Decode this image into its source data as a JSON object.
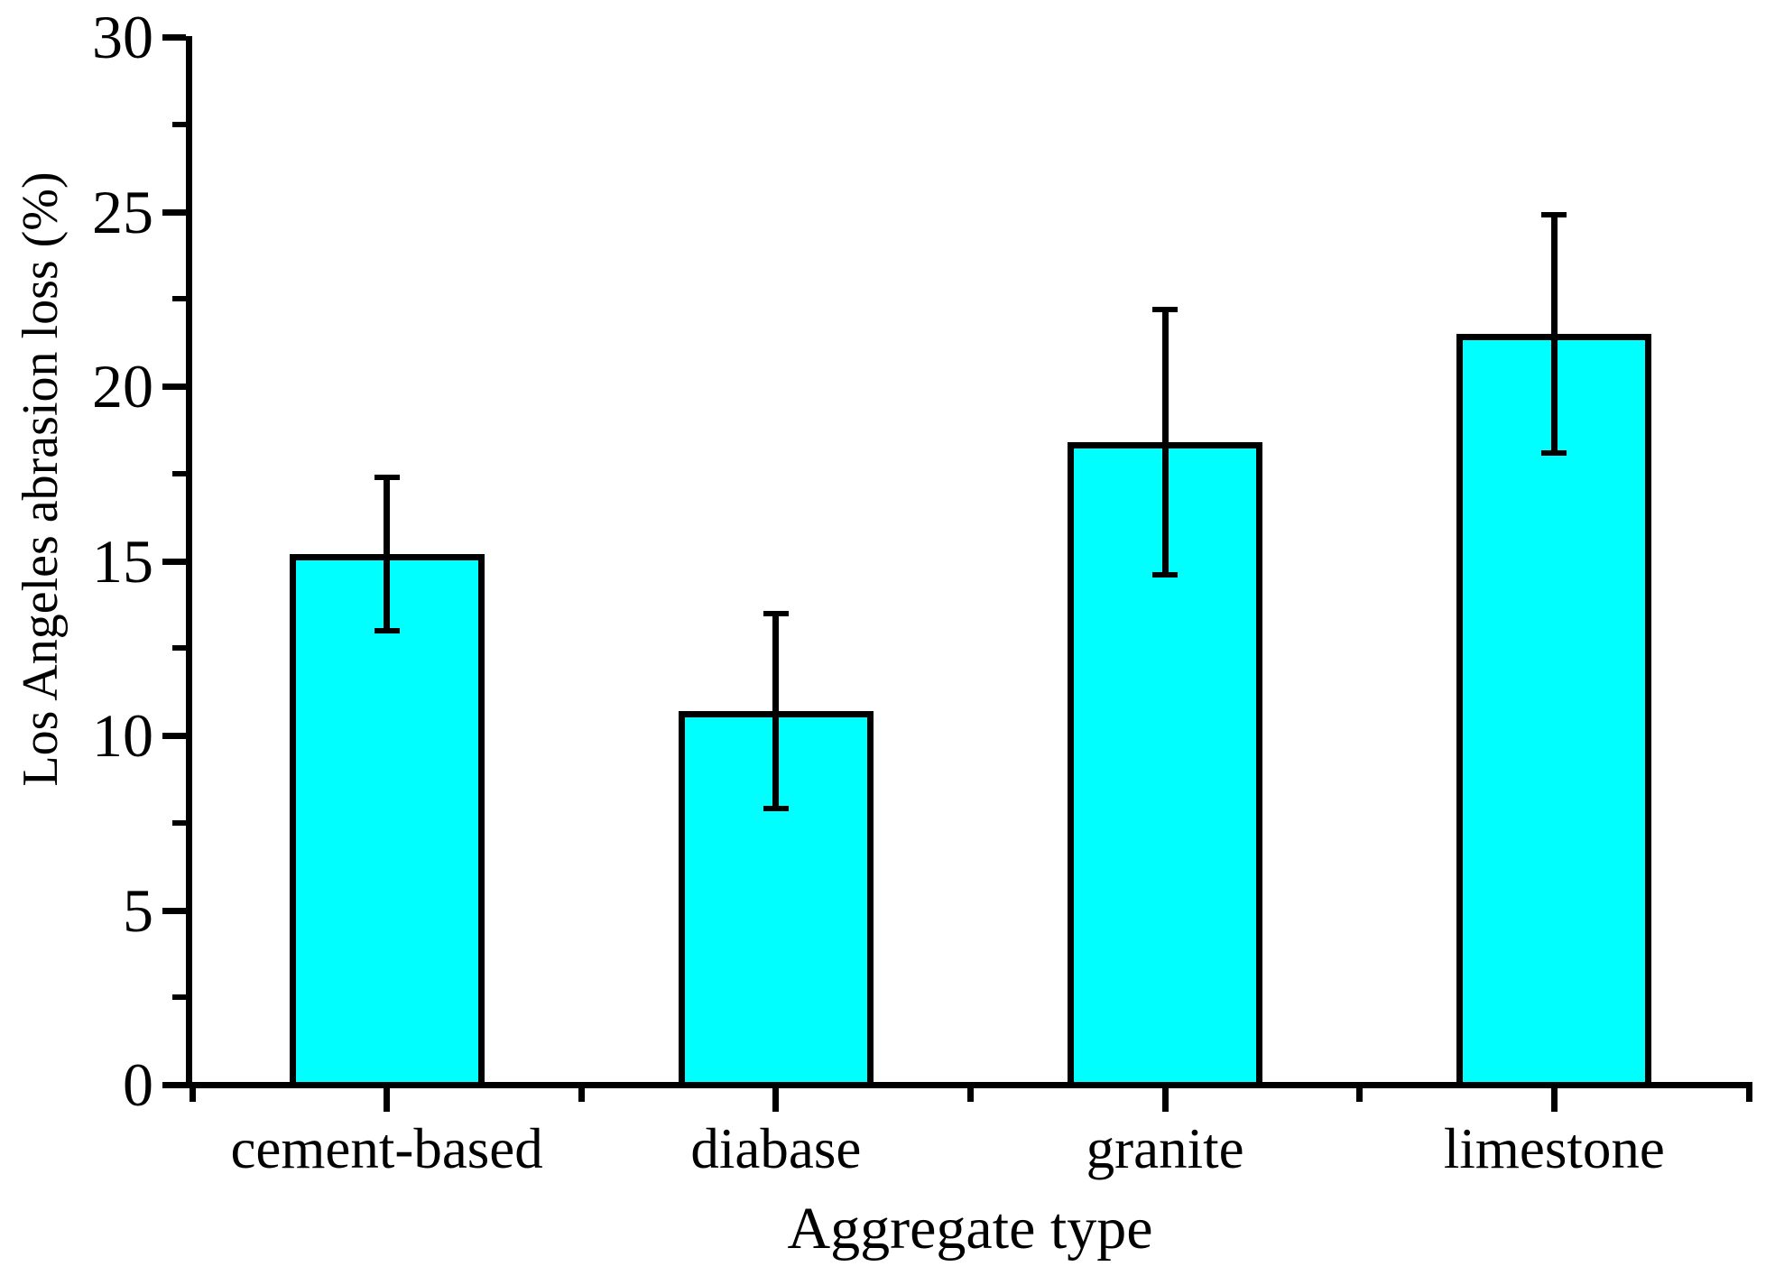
{
  "chart_data": {
    "type": "bar",
    "title": "",
    "xlabel": "Aggregate type",
    "ylabel": "Los Angeles abrasion loss (%)",
    "categories": [
      "cement-based",
      "diabase",
      "granite",
      "limestone"
    ],
    "values": [
      15.2,
      10.7,
      18.4,
      21.5
    ],
    "error_bars_plus_minus": [
      2.2,
      2.8,
      3.8,
      3.4
    ],
    "error_upper_values": [
      17.4,
      13.5,
      22.2,
      24.9
    ],
    "error_lower_values": [
      13.0,
      7.9,
      14.6,
      18.1
    ],
    "y_major_ticks": [
      0,
      5,
      10,
      15,
      20,
      25,
      30
    ],
    "y_tick_labels": [
      "0",
      "5",
      "10",
      "15",
      "20",
      "25",
      "30"
    ],
    "y_minor_step": 2.5,
    "ylim": [
      0,
      30
    ],
    "grid": false,
    "legend": null,
    "bar_color": "#00FFFF",
    "axis_color": "#000000",
    "background_color": "#FFFFFF"
  }
}
